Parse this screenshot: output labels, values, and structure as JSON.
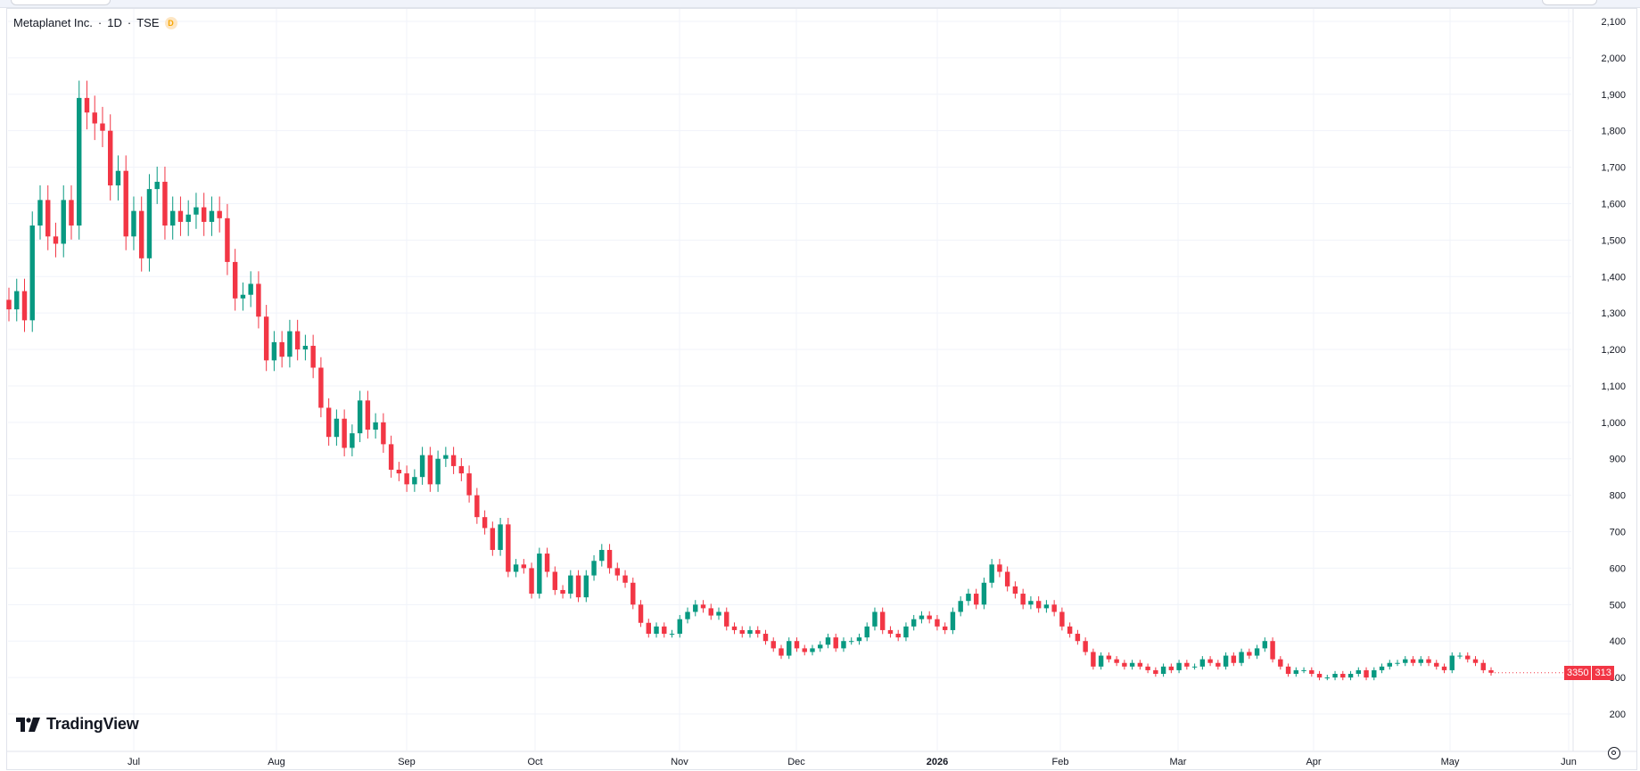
{
  "legend": {
    "symbol": "Metaplanet Inc.",
    "separator1": " · ",
    "interval": "1D",
    "separator2": " · ",
    "exchange": "TSE",
    "badge": "D"
  },
  "brand": {
    "name": "TradingView"
  },
  "price_tag": {
    "left": "3350",
    "right": "313"
  },
  "colors": {
    "up": "#089981",
    "down": "#f23645",
    "grid": "#f0f3fa",
    "text": "#131722"
  },
  "icons": {
    "settings": "gear-icon",
    "logo": "tradingview-logo-icon"
  },
  "chart_data": {
    "type": "candlestick",
    "y_axis": {
      "range": [
        180,
        2110
      ],
      "ticks": [
        2100,
        2000,
        1900,
        1800,
        1700,
        1600,
        1500,
        1400,
        1300,
        1200,
        1100,
        1000,
        900,
        800,
        700,
        600,
        500,
        400,
        300,
        200
      ],
      "tick_labels": [
        "2,100",
        "2,000",
        "1,900",
        "1,800",
        "1,700",
        "1,600",
        "1,500",
        "1,400",
        "1,300",
        "1,200",
        "1,100",
        "1,000",
        "900",
        "800",
        "700",
        "600",
        "500",
        "400",
        "300",
        "200"
      ]
    },
    "x_axis": {
      "labels": [
        "Jul",
        "Aug",
        "Sep",
        "Oct",
        "Nov",
        "Dec",
        "2026",
        "Feb",
        "Mar",
        "Apr",
        "May",
        "Jun"
      ],
      "bold": [
        false,
        false,
        false,
        false,
        false,
        false,
        true,
        false,
        false,
        false,
        false,
        false
      ]
    },
    "grid": true,
    "last_close": 313,
    "closes": [
      1310,
      1360,
      1280,
      1540,
      1610,
      1510,
      1490,
      1610,
      1540,
      1890,
      1850,
      1820,
      1800,
      1650,
      1690,
      1510,
      1580,
      1450,
      1640,
      1660,
      1540,
      1580,
      1550,
      1570,
      1590,
      1550,
      1580,
      1560,
      1440,
      1340,
      1350,
      1380,
      1290,
      1170,
      1220,
      1180,
      1250,
      1200,
      1210,
      1150,
      1040,
      960,
      1010,
      930,
      970,
      1060,
      980,
      1000,
      940,
      870,
      860,
      830,
      850,
      910,
      830,
      900,
      910,
      880,
      860,
      800,
      740,
      710,
      650,
      720,
      590,
      610,
      600,
      530,
      640,
      590,
      540,
      530,
      580,
      520,
      580,
      620,
      650,
      600,
      580,
      560,
      500,
      450,
      420,
      440,
      420,
      420,
      460,
      480,
      500,
      490,
      470,
      480,
      440,
      430,
      420,
      430,
      420,
      400,
      380,
      360,
      400,
      380,
      370,
      380,
      390,
      410,
      380,
      400,
      400,
      410,
      440,
      480,
      430,
      420,
      410,
      440,
      460,
      470,
      460,
      440,
      430,
      480,
      510,
      530,
      500,
      560,
      610,
      590,
      550,
      530,
      500,
      510,
      490,
      500,
      480,
      440,
      420,
      400,
      370,
      330,
      360,
      350,
      340,
      330,
      340,
      330,
      320,
      310,
      330,
      320,
      340,
      330,
      330,
      350,
      340,
      330,
      360,
      340,
      370,
      360,
      380,
      400,
      350,
      330,
      310,
      320,
      320,
      310,
      300,
      300,
      310,
      300,
      310,
      320,
      300,
      320,
      330,
      340,
      340,
      350,
      340,
      350,
      340,
      330,
      320,
      360,
      360,
      350,
      340,
      320,
      313
    ]
  }
}
